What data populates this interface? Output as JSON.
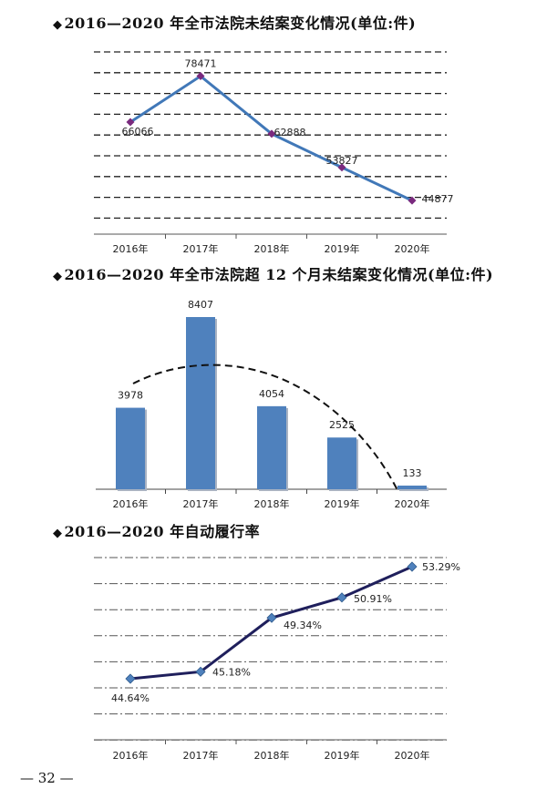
{
  "page_number": "— 32 —",
  "chart_data": [
    {
      "type": "line",
      "title": "2016—2020 年全市法院未结案变化情况(单位:件)",
      "categories": [
        "2016年",
        "2017年",
        "2018年",
        "2019年",
        "2020年"
      ],
      "series": [
        {
          "values": [
            66066,
            78471,
            62888,
            53827,
            44877
          ]
        }
      ],
      "data_labels": [
        "66066",
        "78471",
        "62888",
        "53827",
        "44877"
      ],
      "ylim": [
        40000,
        85000
      ],
      "grid": true,
      "line_color": "#4178b8",
      "marker_color": "#7a2a7e"
    },
    {
      "type": "bar",
      "title": "2016—2020 年全市法院超 12 个月未结案变化情况(单位:件)",
      "categories": [
        "2016年",
        "2017年",
        "2018年",
        "2019年",
        "2020年"
      ],
      "values": [
        3978,
        8407,
        4054,
        2525,
        133
      ],
      "data_labels": [
        "3978",
        "8407",
        "4054",
        "2525",
        "133"
      ],
      "ylim": [
        0,
        9000
      ],
      "trend_curve": "dashed",
      "bar_color": "#4f81bd",
      "grid": false
    },
    {
      "type": "line",
      "title": "2016—2020 年自动履行率",
      "categories": [
        "2016年",
        "2017年",
        "2018年",
        "2019年",
        "2020年"
      ],
      "series": [
        {
          "values": [
            44.64,
            45.18,
            49.34,
            50.91,
            53.29
          ]
        }
      ],
      "data_labels": [
        "44.64%",
        "45.18%",
        "49.34%",
        "50.91%",
        "53.29%"
      ],
      "ylim": [
        43,
        54
      ],
      "grid": true,
      "line_color": "#1f1f5c",
      "marker_color": "#4f81bd"
    }
  ]
}
